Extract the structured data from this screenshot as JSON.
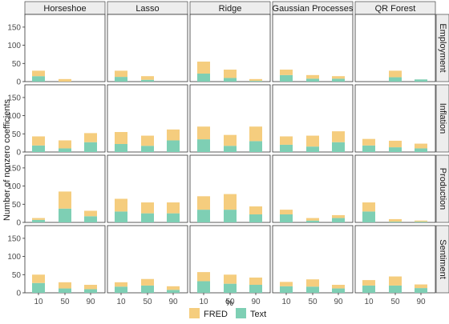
{
  "chart_data": {
    "type": "bar",
    "stacked": true,
    "facet_columns": [
      "Horseshoe",
      "Lasso",
      "Ridge",
      "Gaussian Processes",
      "QR Forest"
    ],
    "facet_rows": [
      "Employment",
      "Inflation",
      "Production",
      "Sentiment"
    ],
    "categories": [
      "10",
      "50",
      "90"
    ],
    "xlabel": "%",
    "ylabel": "Number of nonzero coefficients",
    "ylim": [
      0,
      185
    ],
    "yticks": [
      0,
      50,
      100,
      150
    ],
    "grid": false,
    "legend": {
      "placement": "bottom",
      "entries": [
        "FRED",
        "Text"
      ]
    },
    "series_colors": {
      "FRED": "#f5cd7e",
      "Text": "#7ecfb4"
    },
    "panels": [
      {
        "row": "Employment",
        "col": "Horseshoe",
        "text": [
          15,
          0,
          0
        ],
        "fred": [
          15,
          7,
          0
        ]
      },
      {
        "row": "Employment",
        "col": "Lasso",
        "text": [
          13,
          5,
          0
        ],
        "fred": [
          17,
          10,
          0
        ]
      },
      {
        "row": "Employment",
        "col": "Ridge",
        "text": [
          22,
          10,
          2
        ],
        "fred": [
          33,
          23,
          5
        ]
      },
      {
        "row": "Employment",
        "col": "Gaussian Processes",
        "text": [
          18,
          8,
          8
        ],
        "fred": [
          15,
          10,
          7
        ]
      },
      {
        "row": "Employment",
        "col": "QR Forest",
        "text": [
          0,
          12,
          6
        ],
        "fred": [
          0,
          18,
          0
        ]
      },
      {
        "row": "Inflation",
        "col": "Horseshoe",
        "text": [
          18,
          10,
          27
        ],
        "fred": [
          25,
          22,
          25
        ]
      },
      {
        "row": "Inflation",
        "col": "Lasso",
        "text": [
          22,
          17,
          32
        ],
        "fred": [
          33,
          28,
          30
        ]
      },
      {
        "row": "Inflation",
        "col": "Ridge",
        "text": [
          35,
          17,
          30
        ],
        "fred": [
          35,
          30,
          40
        ]
      },
      {
        "row": "Inflation",
        "col": "Gaussian Processes",
        "text": [
          20,
          15,
          27
        ],
        "fred": [
          23,
          30,
          30
        ]
      },
      {
        "row": "Inflation",
        "col": "QR Forest",
        "text": [
          18,
          13,
          10
        ],
        "fred": [
          18,
          18,
          13
        ]
      },
      {
        "row": "Production",
        "col": "Horseshoe",
        "text": [
          7,
          38,
          17
        ],
        "fred": [
          5,
          47,
          15
        ]
      },
      {
        "row": "Production",
        "col": "Lasso",
        "text": [
          30,
          25,
          25
        ],
        "fred": [
          35,
          30,
          30
        ]
      },
      {
        "row": "Production",
        "col": "Ridge",
        "text": [
          35,
          35,
          22
        ],
        "fred": [
          37,
          43,
          22
        ]
      },
      {
        "row": "Production",
        "col": "Gaussian Processes",
        "text": [
          22,
          5,
          12
        ],
        "fred": [
          13,
          7,
          8
        ]
      },
      {
        "row": "Production",
        "col": "QR Forest",
        "text": [
          30,
          2,
          2
        ],
        "fred": [
          25,
          7,
          3
        ]
      },
      {
        "row": "Sentiment",
        "col": "Horseshoe",
        "text": [
          27,
          12,
          10
        ],
        "fred": [
          23,
          17,
          12
        ]
      },
      {
        "row": "Sentiment",
        "col": "Lasso",
        "text": [
          17,
          20,
          8
        ],
        "fred": [
          12,
          18,
          10
        ]
      },
      {
        "row": "Sentiment",
        "col": "Ridge",
        "text": [
          32,
          25,
          22
        ],
        "fred": [
          25,
          25,
          20
        ]
      },
      {
        "row": "Sentiment",
        "col": "Gaussian Processes",
        "text": [
          18,
          17,
          12
        ],
        "fred": [
          12,
          20,
          10
        ]
      },
      {
        "row": "Sentiment",
        "col": "QR Forest",
        "text": [
          20,
          20,
          13
        ],
        "fred": [
          15,
          25,
          10
        ]
      }
    ]
  }
}
